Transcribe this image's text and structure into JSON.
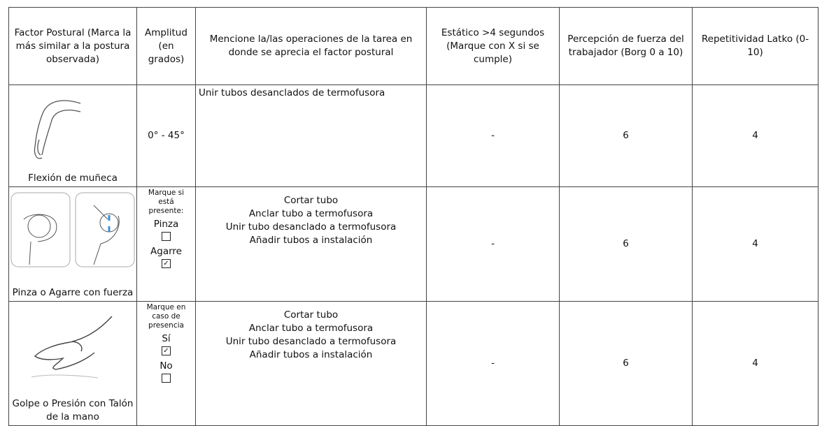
{
  "table": {
    "header": [
      "Factor Postural (Marca la más similar a la postura observada)",
      "Amplitud (en grados)",
      "Mencione la/las operaciones de la tarea en donde se aprecia el factor postural",
      "Estático >4 segundos (Marque con X si se cumple)",
      "Percepción de fuerza del trabajador (Borg 0 a 10)",
      "Repetitividad Latko (0-10)"
    ],
    "rows": [
      {
        "posture": "Flexión de muñeca",
        "amplitude": "0° - 45°",
        "operations": [
          "Unir tubos desanclados de termofusora"
        ],
        "static": "-",
        "force": "6",
        "repetitivity": "4"
      },
      {
        "posture": "Pinza o Agarre con fuerza",
        "amplitude": {
          "note": "Marque si está presente:",
          "options": [
            {
              "label": "Pinza",
              "checked": false
            },
            {
              "label": "Agarre",
              "checked": true
            }
          ]
        },
        "operations": [
          "Cortar tubo",
          "Anclar tubo a termofusora",
          "Unir tubo desanclado a termofusora",
          "Añadir tubos a instalación"
        ],
        "static": "-",
        "force": "6",
        "repetitivity": "4"
      },
      {
        "posture": "Golpe o Presión con Talón de la mano",
        "amplitude": {
          "note": "Marque en caso de presencia",
          "options": [
            {
              "label": "Sí",
              "checked": true
            },
            {
              "label": "No",
              "checked": false
            }
          ]
        },
        "operations": [
          "Cortar tubo",
          "Anclar tubo a termofusora",
          "Unir tubo desanclado a termofusora",
          "Añadir tubos a instalación"
        ],
        "static": "-",
        "force": "6",
        "repetitivity": "4"
      }
    ]
  }
}
